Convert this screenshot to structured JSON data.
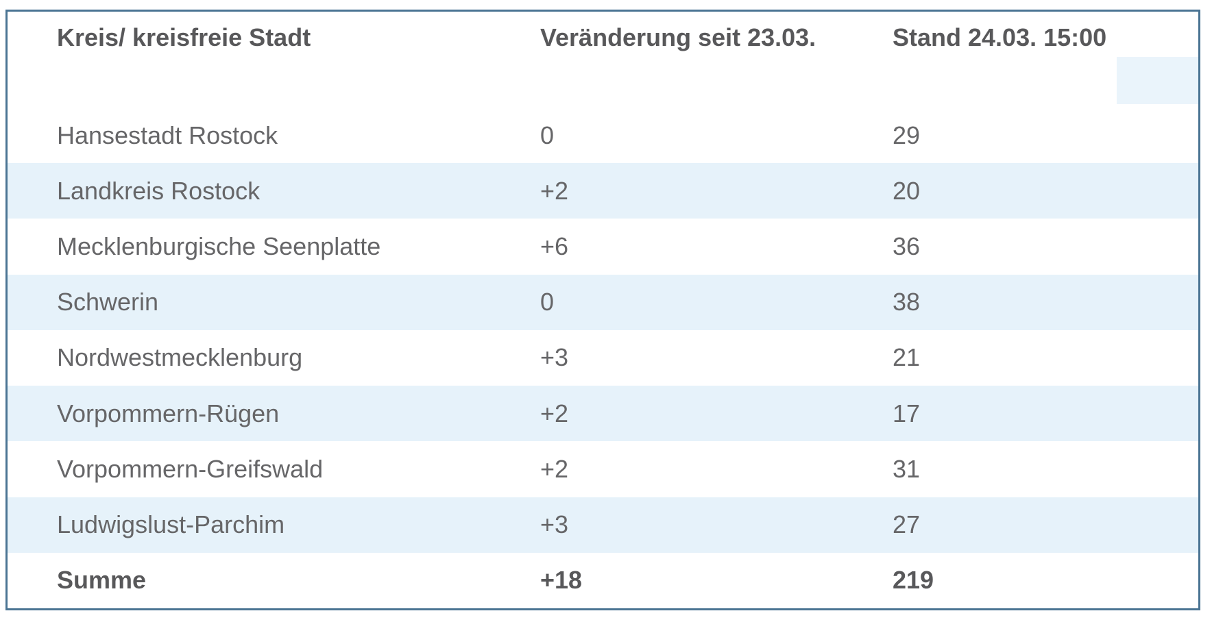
{
  "chart_data": {
    "type": "table",
    "title": "",
    "columns": [
      "Kreis/ kreisfreie Stadt",
      "Veränderung seit 23.03.",
      "Stand 24.03. 15:00"
    ],
    "rows": [
      [
        "Hansestadt Rostock",
        "0",
        "29"
      ],
      [
        "Landkreis Rostock",
        "+2",
        "20"
      ],
      [
        "Mecklenburgische Seenplatte",
        "+6",
        "36"
      ],
      [
        "Schwerin",
        "0",
        "38"
      ],
      [
        "Nordwestmecklenburg",
        "+3",
        "21"
      ],
      [
        "Vorpommern-Rügen",
        "+2",
        "17"
      ],
      [
        "Vorpommern-Greifswald",
        "+2",
        "31"
      ],
      [
        "Ludwigslust-Parchim",
        "+3",
        "27"
      ]
    ],
    "summary_row": [
      "Summe",
      "+18",
      "219"
    ],
    "layout_hints": {
      "striped_rows": "even data rows highlighted",
      "grid": "off",
      "header_position": "top"
    }
  },
  "colors": {
    "frame_border": "#4a7493",
    "stripe": "#e6f2fa",
    "header_highlight_cell": "#eaf4fb",
    "header_text": "#58585a",
    "body_text": "#666668",
    "background": "#ffffff"
  }
}
